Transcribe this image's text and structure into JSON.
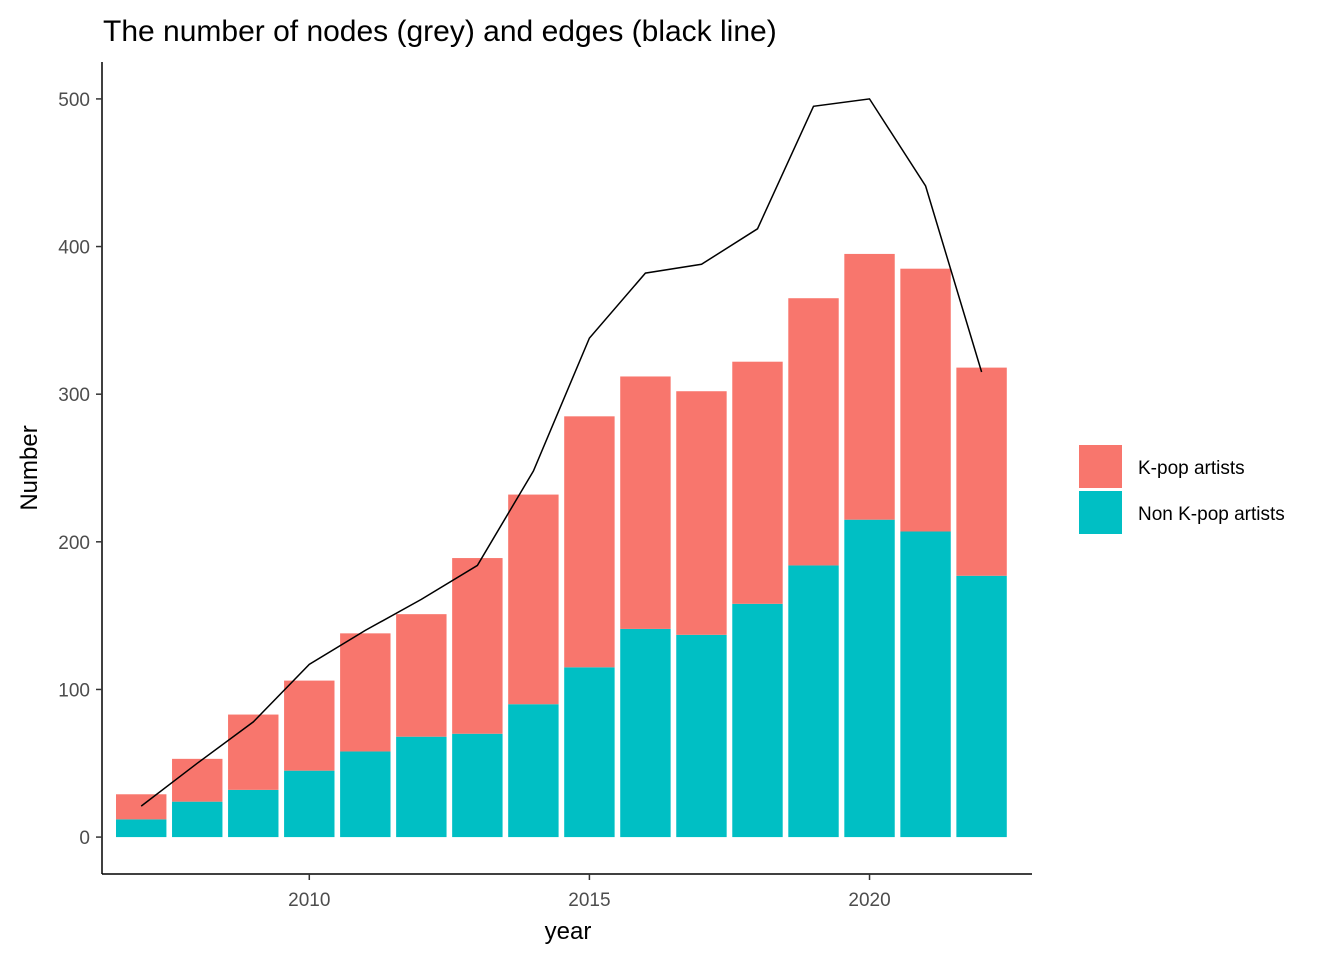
{
  "chart_data": {
    "type": "bar",
    "stacked": true,
    "title": "The number of nodes (grey) and edges (black line)",
    "xlabel": "year",
    "ylabel": "Number",
    "x": [
      2007,
      2008,
      2009,
      2010,
      2011,
      2012,
      2013,
      2014,
      2015,
      2016,
      2017,
      2018,
      2019,
      2020,
      2021,
      2022
    ],
    "xlim": [
      2006.3,
      2022.9
    ],
    "ylim": [
      -25,
      525
    ],
    "x_ticks": [
      2010,
      2015,
      2020
    ],
    "y_ticks": [
      0,
      100,
      200,
      300,
      400,
      500
    ],
    "series": [
      {
        "name": "Non K-pop artists",
        "color": "#00BFC4",
        "values": [
          12,
          24,
          32,
          45,
          58,
          68,
          70,
          90,
          115,
          141,
          137,
          158,
          184,
          215,
          207,
          177
        ]
      },
      {
        "name": "K-pop artists",
        "color": "#F8766D",
        "values": [
          17,
          29,
          51,
          61,
          80,
          83,
          119,
          142,
          170,
          171,
          165,
          164,
          181,
          180,
          178,
          141
        ]
      }
    ],
    "line": {
      "color": "#000000",
      "values": [
        21,
        50,
        78,
        117,
        140,
        161,
        184,
        248,
        338,
        382,
        388,
        412,
        495,
        500,
        441,
        315
      ]
    },
    "legend": {
      "position": "right",
      "entries": [
        {
          "label": "K-pop artists",
          "color": "#F8766D"
        },
        {
          "label": "Non K-pop artists",
          "color": "#00BFC4"
        }
      ]
    },
    "grid": false
  }
}
